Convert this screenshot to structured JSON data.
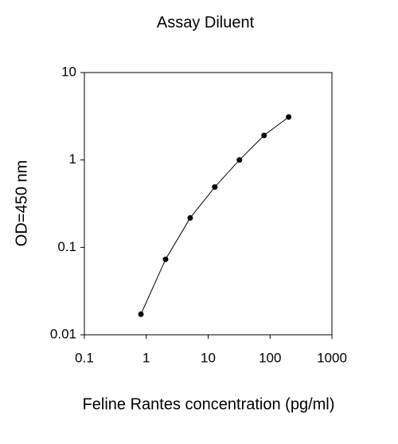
{
  "chart_data": {
    "type": "line",
    "title": "Assay Diluent",
    "x_label": "Feline Rantes concentration (pg/ml)",
    "y_label": "OD=450 nm",
    "x": [
      0.82,
      2.05,
      5.12,
      12.8,
      32,
      80,
      200
    ],
    "values": [
      0.0172,
      0.073,
      0.217,
      0.49,
      1.0,
      1.91,
      3.1
    ],
    "color": "#000000",
    "markers": true,
    "xscale": "log",
    "yscale": "log",
    "xlim": [
      0.1,
      1000
    ],
    "xticks": [
      0.1,
      1,
      10,
      100,
      1000
    ],
    "ylim": [
      0.01,
      10
    ],
    "yticks": [
      0.01,
      0.1,
      1,
      10
    ],
    "grid": false
  }
}
